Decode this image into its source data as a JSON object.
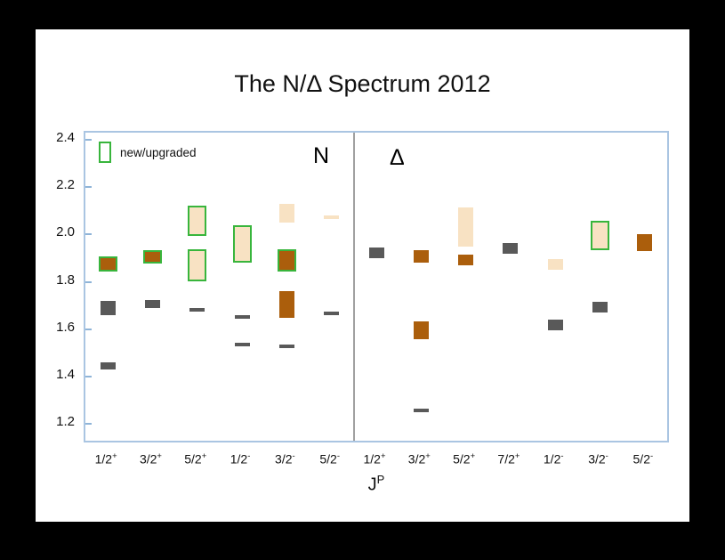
{
  "chart_data": {
    "type": "scatter",
    "title": "The N/Δ Spectrum 2012",
    "xlabel_base": "J",
    "xlabel_sup": "P",
    "ylabel": "",
    "ylim": [
      1.2,
      2.4
    ],
    "yticks": [
      "2.4",
      "2.2",
      "2.0",
      "1.8",
      "1.6",
      "1.4",
      "1.2"
    ],
    "grid": false,
    "legend_position": "top-left",
    "legend": {
      "label": "new/upgraded",
      "swatch": "green-outlined-box"
    },
    "colors": {
      "gray": "#595959",
      "brown": "#ab5e0c",
      "tan": "#f8e2c3",
      "new_outline": "#38b53c",
      "axis": "#aac5e2",
      "divider": "#a0a0a0"
    },
    "sections": [
      {
        "label": "N",
        "categories": [
          "1/2+",
          "3/2+",
          "5/2+",
          "1/2-",
          "3/2-",
          "5/2-"
        ],
        "points": [
          {
            "cat": 0,
            "lo": 1.43,
            "hi": 1.46,
            "fill": "gray",
            "new": false
          },
          {
            "cat": 0,
            "lo": 1.66,
            "hi": 1.72,
            "fill": "gray",
            "new": false
          },
          {
            "cat": 0,
            "lo": 1.85,
            "hi": 1.9,
            "fill": "brown",
            "new": true
          },
          {
            "cat": 1,
            "lo": 1.69,
            "hi": 1.725,
            "fill": "gray",
            "new": false
          },
          {
            "cat": 1,
            "lo": 1.885,
            "hi": 1.925,
            "fill": "brown",
            "new": true
          },
          {
            "cat": 2,
            "lo": 1.675,
            "hi": 1.69,
            "fill": "gray",
            "new": false
          },
          {
            "cat": 2,
            "lo": 1.81,
            "hi": 1.93,
            "fill": "tan",
            "new": true
          },
          {
            "cat": 2,
            "lo": 2.0,
            "hi": 2.115,
            "fill": "tan",
            "new": true
          },
          {
            "cat": 3,
            "lo": 1.53,
            "hi": 1.545,
            "fill": "gray",
            "new": false
          },
          {
            "cat": 3,
            "lo": 1.645,
            "hi": 1.66,
            "fill": "gray",
            "new": false
          },
          {
            "cat": 3,
            "lo": 1.89,
            "hi": 2.03,
            "fill": "tan",
            "new": true
          },
          {
            "cat": 4,
            "lo": 1.52,
            "hi": 1.535,
            "fill": "gray",
            "new": false
          },
          {
            "cat": 4,
            "lo": 1.65,
            "hi": 1.76,
            "fill": "brown",
            "new": false
          },
          {
            "cat": 4,
            "lo": 1.85,
            "hi": 1.93,
            "fill": "brown",
            "new": true
          },
          {
            "cat": 4,
            "lo": 2.05,
            "hi": 2.13,
            "fill": "tan",
            "new": false
          },
          {
            "cat": 5,
            "lo": 1.66,
            "hi": 1.675,
            "fill": "gray",
            "new": false
          },
          {
            "cat": 5,
            "lo": 2.065,
            "hi": 2.08,
            "fill": "tan",
            "new": false
          }
        ]
      },
      {
        "label": "Δ",
        "categories": [
          "1/2+",
          "3/2+",
          "5/2+",
          "7/2+",
          "1/2-",
          "3/2-",
          "5/2-"
        ],
        "points": [
          {
            "cat": 0,
            "lo": 1.9,
            "hi": 1.945,
            "fill": "gray",
            "new": false
          },
          {
            "cat": 1,
            "lo": 1.25,
            "hi": 1.265,
            "fill": "gray",
            "new": false
          },
          {
            "cat": 1,
            "lo": 1.56,
            "hi": 1.635,
            "fill": "brown",
            "new": false
          },
          {
            "cat": 1,
            "lo": 1.88,
            "hi": 1.935,
            "fill": "brown",
            "new": false
          },
          {
            "cat": 2,
            "lo": 1.87,
            "hi": 1.915,
            "fill": "brown",
            "new": false
          },
          {
            "cat": 2,
            "lo": 1.95,
            "hi": 2.115,
            "fill": "tan",
            "new": false
          },
          {
            "cat": 3,
            "lo": 1.92,
            "hi": 1.965,
            "fill": "gray",
            "new": false
          },
          {
            "cat": 4,
            "lo": 1.595,
            "hi": 1.64,
            "fill": "gray",
            "new": false
          },
          {
            "cat": 4,
            "lo": 1.85,
            "hi": 1.895,
            "fill": "tan",
            "new": false
          },
          {
            "cat": 5,
            "lo": 1.67,
            "hi": 1.715,
            "fill": "gray",
            "new": false
          },
          {
            "cat": 5,
            "lo": 1.94,
            "hi": 2.05,
            "fill": "tan",
            "new": true
          },
          {
            "cat": 6,
            "lo": 1.93,
            "hi": 2.0,
            "fill": "brown",
            "new": false
          }
        ]
      }
    ]
  }
}
